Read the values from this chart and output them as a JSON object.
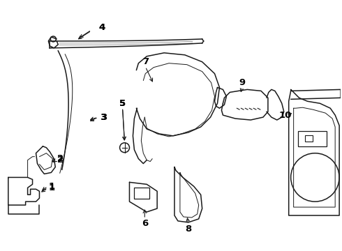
{
  "bg_color": "#ffffff",
  "line_color": "#1a1a1a",
  "label_color": "#000000",
  "lw_main": 1.1,
  "lw_thin": 0.7,
  "label_fontsize": 9.5
}
